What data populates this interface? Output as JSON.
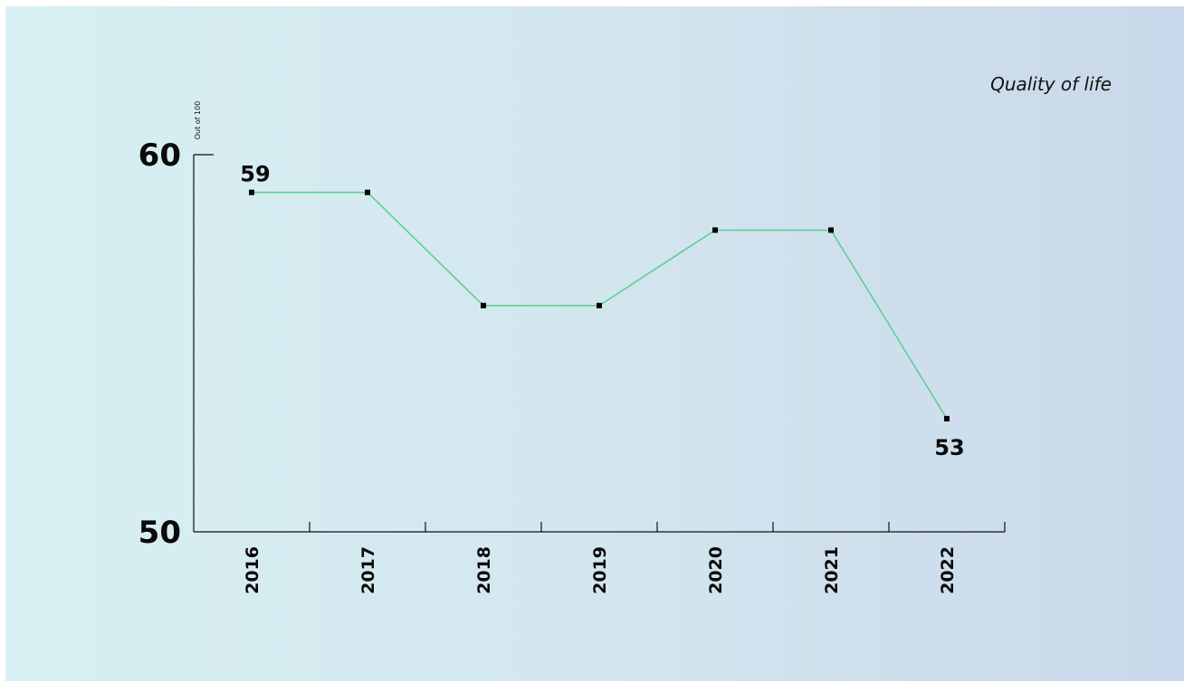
{
  "chart_data": {
    "type": "line",
    "title": "Quality of life",
    "y_unit_label": "Out of 100",
    "ylim": [
      50,
      60
    ],
    "y_ticks": [
      "60",
      "50"
    ],
    "categories": [
      "2016",
      "2017",
      "2018",
      "2019",
      "2020",
      "2021",
      "2022"
    ],
    "series": [
      {
        "values": [
          59,
          59,
          56,
          56,
          58,
          58,
          53
        ]
      }
    ],
    "data_labels": [
      {
        "index": 0,
        "text": "59"
      },
      {
        "index": 6,
        "text": "53"
      }
    ],
    "colors": {
      "line": "#5fcf95",
      "marker": "#000000"
    },
    "grid": false
  }
}
